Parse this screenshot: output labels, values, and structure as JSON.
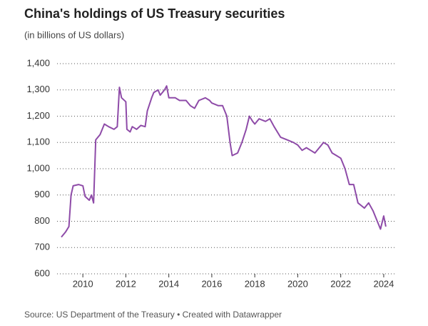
{
  "chart_data": {
    "type": "line",
    "title": "China's holdings of US Treasury securities",
    "subtitle": "(in billions of US dollars)",
    "source": "Source: US Department of the Treasury • Created with Datawrapper",
    "x": [
      2009.0,
      2009.2,
      2009.35,
      2009.45,
      2009.55,
      2009.8,
      2010.0,
      2010.1,
      2010.3,
      2010.4,
      2010.5,
      2010.6,
      2010.8,
      2011.0,
      2011.2,
      2011.45,
      2011.6,
      2011.7,
      2011.8,
      2012.0,
      2012.05,
      2012.2,
      2012.3,
      2012.5,
      2012.7,
      2012.9,
      2013.0,
      2013.2,
      2013.3,
      2013.5,
      2013.6,
      2013.8,
      2013.9,
      2014.0,
      2014.3,
      2014.5,
      2014.8,
      2015.0,
      2015.2,
      2015.4,
      2015.7,
      2015.9,
      2016.0,
      2016.3,
      2016.5,
      2016.7,
      2016.85,
      2016.95,
      2017.2,
      2017.4,
      2017.6,
      2017.75,
      2017.9,
      2018.0,
      2018.2,
      2018.5,
      2018.7,
      2018.9,
      2019.2,
      2019.5,
      2019.8,
      2020.0,
      2020.2,
      2020.4,
      2020.6,
      2020.8,
      2021.0,
      2021.2,
      2021.4,
      2021.6,
      2021.8,
      2022.0,
      2022.2,
      2022.4,
      2022.6,
      2022.8,
      2023.1,
      2023.3,
      2023.5,
      2023.7,
      2023.85,
      2024.0,
      2024.1
    ],
    "series": [
      {
        "color": "#8e4ba8",
        "values": [
          740,
          760,
          780,
          900,
          935,
          940,
          935,
          895,
          880,
          900,
          870,
          1110,
          1130,
          1170,
          1160,
          1150,
          1160,
          1310,
          1270,
          1255,
          1150,
          1140,
          1160,
          1150,
          1165,
          1160,
          1220,
          1270,
          1290,
          1300,
          1280,
          1300,
          1315,
          1270,
          1270,
          1260,
          1260,
          1240,
          1230,
          1260,
          1270,
          1260,
          1250,
          1240,
          1240,
          1200,
          1100,
          1050,
          1060,
          1100,
          1150,
          1200,
          1180,
          1170,
          1190,
          1180,
          1190,
          1160,
          1120,
          1110,
          1100,
          1090,
          1070,
          1080,
          1070,
          1060,
          1080,
          1100,
          1090,
          1060,
          1050,
          1040,
          1000,
          940,
          940,
          870,
          850,
          870,
          840,
          800,
          770,
          820,
          780
        ]
      }
    ],
    "xlim": [
      2008.8,
      2024.5
    ],
    "xticks": [
      2010,
      2012,
      2014,
      2016,
      2018,
      2020,
      2022,
      2024
    ],
    "ylim": [
      600,
      1400
    ],
    "yticks": [
      600,
      700,
      800,
      900,
      {
        "value": 1000,
        "label": "1,000"
      },
      {
        "value": 1100,
        "label": "1,100"
      },
      {
        "value": 1200,
        "label": "1,200"
      },
      {
        "value": 1300,
        "label": "1,300"
      },
      {
        "value": 1400,
        "label": "1,400"
      }
    ],
    "grid": true
  }
}
